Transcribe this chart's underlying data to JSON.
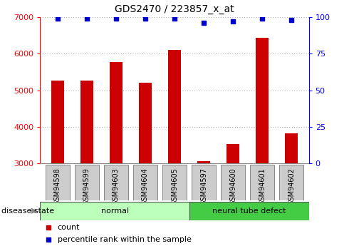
{
  "title": "GDS2470 / 223857_x_at",
  "categories": [
    "GSM94598",
    "GSM94599",
    "GSM94603",
    "GSM94604",
    "GSM94605",
    "GSM94597",
    "GSM94600",
    "GSM94601",
    "GSM94602"
  ],
  "bar_values": [
    5270,
    5270,
    5780,
    5210,
    6100,
    3060,
    3540,
    6440,
    3820
  ],
  "percentile_values": [
    99,
    99,
    99,
    99,
    99,
    96,
    97,
    99,
    98
  ],
  "bar_color": "#cc0000",
  "dot_color": "#0000cc",
  "ylim_left": [
    3000,
    7000
  ],
  "ylim_right": [
    0,
    100
  ],
  "yticks_left": [
    3000,
    4000,
    5000,
    6000,
    7000
  ],
  "yticks_right": [
    0,
    25,
    50,
    75,
    100
  ],
  "groups": [
    {
      "label": "normal",
      "start": 0,
      "end": 5,
      "color": "#bbffbb"
    },
    {
      "label": "neural tube defect",
      "start": 5,
      "end": 9,
      "color": "#44cc44"
    }
  ],
  "disease_state_label": "disease state",
  "legend_items": [
    {
      "label": "count",
      "color": "#cc0000",
      "marker": "s"
    },
    {
      "label": "percentile rank within the sample",
      "color": "#0000cc",
      "marker": "s"
    }
  ],
  "grid_color": "#888888",
  "bar_width": 0.45,
  "tick_box_color": "#cccccc",
  "tick_box_edge": "#888888"
}
